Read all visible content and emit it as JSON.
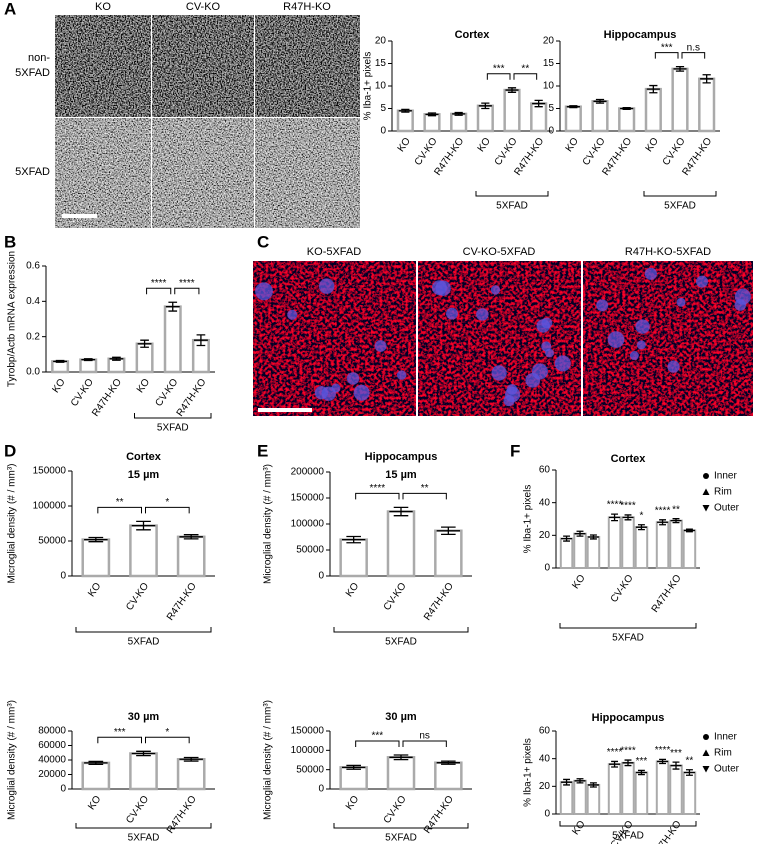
{
  "figure": {
    "panel_letters": [
      "A",
      "B",
      "C",
      "D",
      "E",
      "F"
    ],
    "panel_a": {
      "columns": [
        "KO",
        "CV-KO",
        "R47H-KO"
      ],
      "rows": [
        [
          "non-",
          "5XFAD"
        ],
        [
          "5XFAD"
        ]
      ]
    },
    "panel_c": {
      "labels": [
        "KO-5XFAD",
        "CV-KO-5XFAD",
        "R47H-KO-5XFAD"
      ]
    }
  },
  "chart_data": [
    {
      "type": "bar",
      "title": "Cortex",
      "ylabel": "% Iba-1+ pixels",
      "categories": [
        "KO",
        "CV-KO",
        "R47H-KO",
        "KO",
        "CV-KO",
        "R47H-KO"
      ],
      "values": [
        4.5,
        3.7,
        3.8,
        5.6,
        9.1,
        6.1
      ],
      "errors": [
        0.3,
        0.3,
        0.3,
        0.6,
        0.5,
        0.7
      ],
      "ylim": [
        0,
        20
      ],
      "yticks": [
        0,
        5,
        10,
        15,
        20
      ],
      "significance": [
        {
          "pair": [
            3,
            4
          ],
          "label": "***"
        },
        {
          "pair": [
            4,
            5
          ],
          "label": "**"
        }
      ],
      "group": {
        "label": "5XFAD",
        "start": 3,
        "end": 5
      }
    },
    {
      "type": "bar",
      "title": "Hippocampus",
      "categories": [
        "KO",
        "CV-KO",
        "R47H-KO",
        "KO",
        "CV-KO",
        "R47H-KO"
      ],
      "values": [
        5.4,
        6.6,
        5.0,
        9.3,
        13.8,
        11.6
      ],
      "errors": [
        0.2,
        0.4,
        0.2,
        0.8,
        0.5,
        0.9
      ],
      "ylim": [
        0,
        20
      ],
      "yticks": [
        0,
        5,
        10,
        15,
        20
      ],
      "significance": [
        {
          "pair": [
            3,
            4
          ],
          "label": "***"
        },
        {
          "pair": [
            4,
            5
          ],
          "label": "n.s"
        }
      ],
      "group": {
        "label": "5XFAD",
        "start": 3,
        "end": 5
      }
    },
    {
      "type": "bar",
      "ylabel": "Tyrobp/Actb mRNA expression",
      "categories": [
        "KO",
        "CV-KO",
        "R47H-KO",
        "KO",
        "CV-KO",
        "R47H-KO"
      ],
      "values": [
        0.06,
        0.07,
        0.075,
        0.16,
        0.37,
        0.18
      ],
      "errors": [
        0.005,
        0.005,
        0.008,
        0.02,
        0.025,
        0.03
      ],
      "ylim": [
        0,
        0.6
      ],
      "yticks": [
        {
          "value": 0,
          "label": "0.0"
        },
        0.2,
        0.4,
        0.6
      ],
      "significance": [
        {
          "pair": [
            3,
            4
          ],
          "label": "****"
        },
        {
          "pair": [
            4,
            5
          ],
          "label": "****"
        }
      ],
      "group": {
        "label": "5XFAD",
        "start": 3,
        "end": 5
      }
    },
    {
      "type": "bar",
      "title": "Cortex",
      "subtitle": "15 µm",
      "ylabel": "Microglial density (# / mm³)",
      "categories": [
        "KO",
        "CV-KO",
        "R47H-KO"
      ],
      "values": [
        52000,
        72000,
        56000
      ],
      "errors": [
        3000,
        6000,
        3000
      ],
      "ylim": [
        0,
        150000
      ],
      "yticks": [
        0,
        50000,
        100000,
        150000
      ],
      "significance": [
        {
          "pair": [
            0,
            1
          ],
          "label": "**"
        },
        {
          "pair": [
            1,
            2
          ],
          "label": "*"
        }
      ],
      "group": {
        "label": "5XFAD",
        "start": 0,
        "end": 2
      }
    },
    {
      "type": "bar",
      "title": "30 µm",
      "ylabel": "Microglial density (# / mm³)",
      "categories": [
        "KO",
        "CV-KO",
        "R47H-KO"
      ],
      "values": [
        36000,
        49000,
        41000
      ],
      "errors": [
        2000,
        3000,
        2500
      ],
      "ylim": [
        0,
        80000
      ],
      "yticks": [
        0,
        20000,
        40000,
        60000,
        80000
      ],
      "significance": [
        {
          "pair": [
            0,
            1
          ],
          "label": "***"
        },
        {
          "pair": [
            1,
            2
          ],
          "label": "*"
        }
      ],
      "group": {
        "label": "5XFAD",
        "start": 0,
        "end": 2
      }
    },
    {
      "type": "bar",
      "title": "Hippocampus",
      "subtitle": "15 µm",
      "ylabel": "Microglial density (# / mm³)",
      "categories": [
        "KO",
        "CV-KO",
        "R47H-KO"
      ],
      "values": [
        70000,
        124000,
        87000
      ],
      "errors": [
        6000,
        8000,
        7000
      ],
      "ylim": [
        0,
        200000
      ],
      "yticks": [
        0,
        50000,
        100000,
        150000,
        200000
      ],
      "significance": [
        {
          "pair": [
            0,
            1
          ],
          "label": "****"
        },
        {
          "pair": [
            1,
            2
          ],
          "label": "**"
        }
      ],
      "group": {
        "label": "5XFAD",
        "start": 0,
        "end": 2
      }
    },
    {
      "type": "bar",
      "title": "30 µm",
      "ylabel": "Microglial density (# / mm³)",
      "categories": [
        "KO",
        "CV-KO",
        "R47H-KO"
      ],
      "values": [
        56000,
        82000,
        68000
      ],
      "errors": [
        5000,
        6000,
        4000
      ],
      "ylim": [
        0,
        150000
      ],
      "yticks": [
        0,
        50000,
        100000,
        150000
      ],
      "significance": [
        {
          "pair": [
            0,
            1
          ],
          "label": "***"
        },
        {
          "pair": [
            1,
            2
          ],
          "label": "ns"
        }
      ],
      "group": {
        "label": "5XFAD",
        "start": 0,
        "end": 2
      }
    },
    {
      "type": "grouped-bar",
      "title": "Cortex",
      "ylabel": "% Iba-1+ pixels",
      "categories": [
        "KO",
        "CV-KO",
        "R47H-KO"
      ],
      "series": [
        {
          "name": "Inner",
          "marker": "circle",
          "values": [
            18,
            31,
            28
          ],
          "errors": [
            1.5,
            2,
            1.5
          ]
        },
        {
          "name": "Rim",
          "marker": "triangle",
          "values": [
            21,
            31,
            29
          ],
          "errors": [
            1.5,
            1.5,
            1.2
          ]
        },
        {
          "name": "Outer",
          "marker": "triangle-down",
          "values": [
            19,
            25,
            23
          ],
          "errors": [
            1.2,
            1.5,
            0.8
          ]
        }
      ],
      "ylim": [
        0,
        60
      ],
      "yticks": [
        0,
        20,
        40,
        60
      ],
      "annotations": [
        {
          "category": 1,
          "series": 0,
          "label": "****"
        },
        {
          "category": 1,
          "series": 1,
          "label": "****"
        },
        {
          "category": 1,
          "series": 2,
          "label": "*"
        },
        {
          "category": 2,
          "series": 0,
          "label": "****"
        },
        {
          "category": 2,
          "series": 1,
          "label": "**"
        }
      ],
      "group": {
        "label": "5XFAD",
        "start": 0,
        "end": 2
      }
    },
    {
      "type": "grouped-bar",
      "title": "Hippocampus",
      "ylabel": "% Iba-1+ pixels",
      "categories": [
        "KO",
        "CV-KO",
        "R47H-KO"
      ],
      "series": [
        {
          "name": "Inner",
          "marker": "circle",
          "values": [
            23,
            36,
            38
          ],
          "errors": [
            2,
            2,
            1.5
          ]
        },
        {
          "name": "Rim",
          "marker": "triangle",
          "values": [
            24,
            37,
            35
          ],
          "errors": [
            1.5,
            2,
            2.5
          ]
        },
        {
          "name": "Outer",
          "marker": "triangle-down",
          "values": [
            21,
            30,
            30
          ],
          "errors": [
            1.5,
            1.5,
            2
          ]
        }
      ],
      "ylim": [
        0,
        60
      ],
      "yticks": [
        0,
        20,
        40,
        60
      ],
      "annotations": [
        {
          "category": 1,
          "series": 0,
          "label": "****"
        },
        {
          "category": 1,
          "series": 1,
          "label": "****"
        },
        {
          "category": 1,
          "series": 2,
          "label": "***"
        },
        {
          "category": 2,
          "series": 0,
          "label": "****"
        },
        {
          "category": 2,
          "series": 1,
          "label": "***"
        },
        {
          "category": 2,
          "series": 2,
          "label": "**"
        }
      ],
      "group": {
        "label": "5XFAD",
        "start": 0,
        "end": 2
      }
    }
  ]
}
